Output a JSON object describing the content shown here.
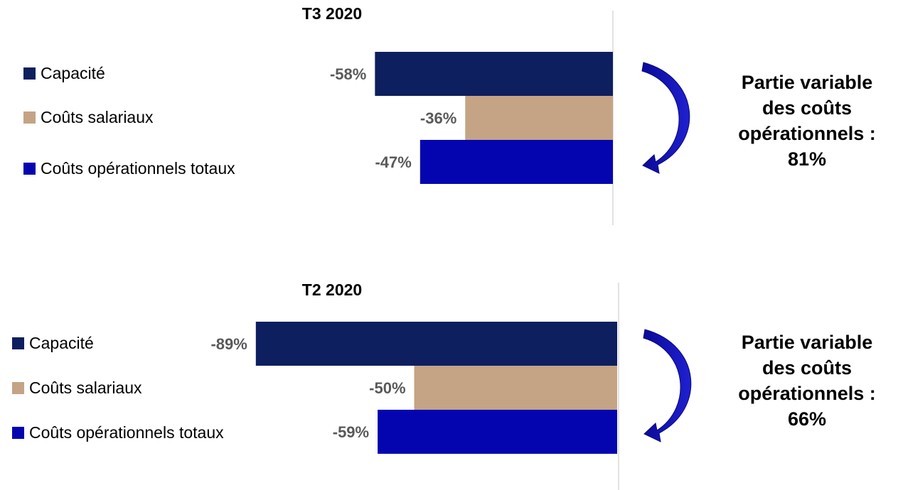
{
  "chart_data": [
    {
      "type": "bar",
      "orientation": "horizontal",
      "title": "T3 2020",
      "categories": [
        "Capacité",
        "Coûts salariaux",
        "Coûts opérationnels totaux"
      ],
      "values": [
        -58,
        -36,
        -47
      ],
      "data_labels": [
        "-58%",
        "-36%",
        "-47%"
      ],
      "colors": [
        "#0d1f5e",
        "#c4a484",
        "#0505b0"
      ],
      "xlim": [
        -100,
        0
      ],
      "legend_position": "left",
      "annotation": {
        "lines": [
          "Partie variable",
          "des coûts",
          "opérationnels :",
          "81%"
        ],
        "arrow_color": "#0505b0"
      }
    },
    {
      "type": "bar",
      "orientation": "horizontal",
      "title": "T2 2020",
      "categories": [
        "Capacité",
        "Coûts salariaux",
        "Coûts opérationnels totaux"
      ],
      "values": [
        -89,
        -50,
        -59
      ],
      "data_labels": [
        "-89%",
        "-50%",
        "-59%"
      ],
      "colors": [
        "#0d1f5e",
        "#c4a484",
        "#0505b0"
      ],
      "xlim": [
        -100,
        0
      ],
      "legend_position": "left",
      "annotation": {
        "lines": [
          "Partie variable",
          "des coûts",
          "opérationnels :",
          "66%"
        ],
        "arrow_color": "#0505b0"
      }
    }
  ]
}
